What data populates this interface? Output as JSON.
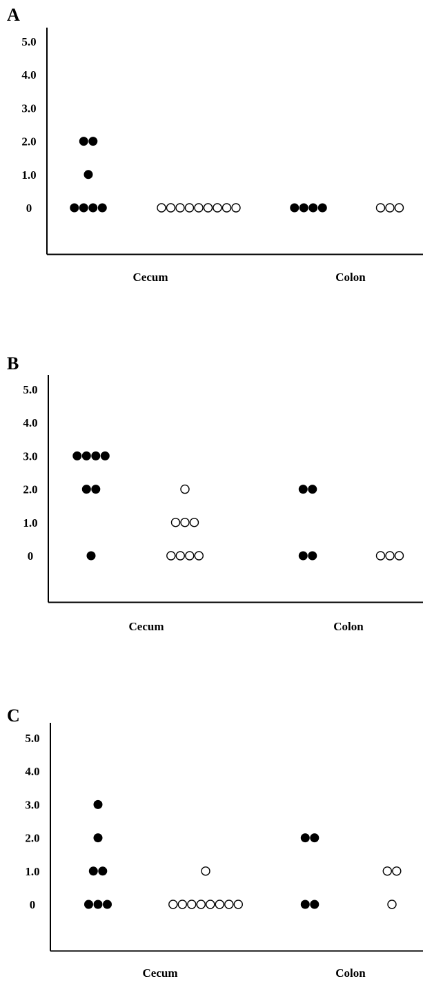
{
  "figure": {
    "panel_labels": [
      "A",
      "B",
      "C"
    ]
  },
  "chart_data": [
    {
      "type": "scatter",
      "panel": "A",
      "categories": [
        "Cecum",
        "Colon"
      ],
      "yticks": [
        "0",
        "1.0",
        "2.0",
        "3.0",
        "4.0",
        "5.0"
      ],
      "ylim": [
        -1.3,
        5.5
      ],
      "grid": false,
      "legend": "none",
      "series": [
        {
          "marker": "filled",
          "category": "Cecum",
          "points": [
            {
              "y": 2,
              "count": 2
            },
            {
              "y": 1,
              "count": 1
            },
            {
              "y": 0,
              "count": 4
            }
          ]
        },
        {
          "marker": "open",
          "category": "Cecum",
          "points": [
            {
              "y": 0,
              "count": 9
            }
          ]
        },
        {
          "marker": "filled",
          "category": "Colon",
          "points": [
            {
              "y": 0,
              "count": 4
            }
          ]
        },
        {
          "marker": "open",
          "category": "Colon",
          "points": [
            {
              "y": 0,
              "count": 3
            }
          ]
        }
      ]
    },
    {
      "type": "scatter",
      "panel": "B",
      "categories": [
        "Cecum",
        "Colon"
      ],
      "yticks": [
        "0",
        "1.0",
        "2.0",
        "3.0",
        "4.0",
        "5.0"
      ],
      "ylim": [
        -1.3,
        5.5
      ],
      "grid": false,
      "legend": "none",
      "series": [
        {
          "marker": "filled",
          "category": "Cecum",
          "points": [
            {
              "y": 3,
              "count": 4
            },
            {
              "y": 2,
              "count": 2
            },
            {
              "y": 0,
              "count": 1
            }
          ]
        },
        {
          "marker": "open",
          "category": "Cecum",
          "points": [
            {
              "y": 2,
              "count": 1
            },
            {
              "y": 1,
              "count": 3
            },
            {
              "y": 0,
              "count": 4
            }
          ]
        },
        {
          "marker": "filled",
          "category": "Colon",
          "points": [
            {
              "y": 2,
              "count": 2
            },
            {
              "y": 0,
              "count": 2
            }
          ]
        },
        {
          "marker": "open",
          "category": "Colon",
          "points": [
            {
              "y": 0,
              "count": 3
            }
          ]
        }
      ]
    },
    {
      "type": "scatter",
      "panel": "C",
      "categories": [
        "Cecum",
        "Colon"
      ],
      "yticks": [
        "0",
        "1.0",
        "2.0",
        "3.0",
        "4.0",
        "5.0"
      ],
      "ylim": [
        -1.3,
        5.5
      ],
      "grid": false,
      "legend": "none",
      "series": [
        {
          "marker": "filled",
          "category": "Cecum",
          "points": [
            {
              "y": 3,
              "count": 1
            },
            {
              "y": 2,
              "count": 1
            },
            {
              "y": 1,
              "count": 2
            },
            {
              "y": 0,
              "count": 3
            }
          ]
        },
        {
          "marker": "open",
          "category": "Cecum",
          "points": [
            {
              "y": 1,
              "count": 1
            },
            {
              "y": 0,
              "count": 8
            }
          ]
        },
        {
          "marker": "filled",
          "category": "Colon",
          "points": [
            {
              "y": 2,
              "count": 2
            },
            {
              "y": 0,
              "count": 2
            }
          ]
        },
        {
          "marker": "open",
          "category": "Colon",
          "points": [
            {
              "y": 1,
              "count": 2
            },
            {
              "y": 0,
              "count": 1
            }
          ]
        }
      ]
    }
  ]
}
